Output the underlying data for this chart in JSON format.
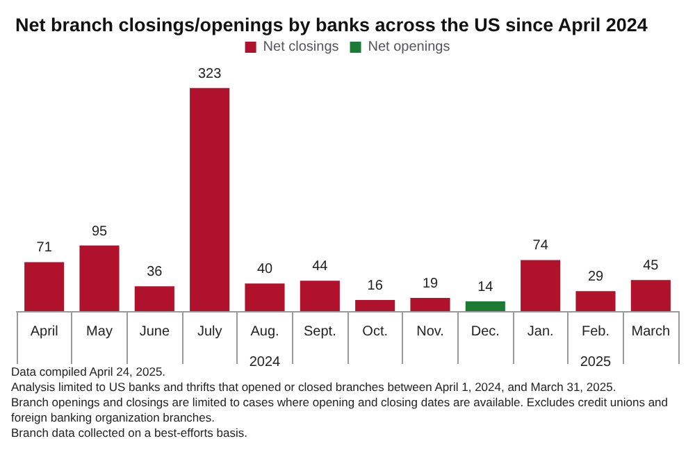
{
  "chart_data": {
    "type": "bar",
    "title": "Net branch closings/openings by banks across the US since April 2024",
    "categories": [
      "April",
      "May",
      "June",
      "July",
      "Aug.",
      "Sept.",
      "Oct.",
      "Nov.",
      "Dec.",
      "Jan.",
      "Feb.",
      "March"
    ],
    "series": [
      {
        "name": "Net closings",
        "color": "#b0112b",
        "values": [
          71,
          95,
          36,
          323,
          40,
          44,
          16,
          19,
          null,
          74,
          29,
          45
        ]
      },
      {
        "name": "Net openings",
        "color": "#1d7a33",
        "values": [
          null,
          null,
          null,
          null,
          null,
          null,
          null,
          null,
          14,
          null,
          null,
          null
        ]
      }
    ],
    "data_labels": true,
    "legend": "top",
    "grid": false,
    "tick_labels": "x",
    "annotations": [
      "2024",
      "2025",
      "Data compiled April 24, 2025.",
      "Analysis limited to US banks and thrifts that opened or closed branches between April 1, 2024, and March 31, 2025.",
      "Branch openings and closings are limited to cases where opening and closing dates are available. Excludes credit unions and foreign banking organization branches.",
      "Branch data collected on a best-efforts basis."
    ]
  }
}
